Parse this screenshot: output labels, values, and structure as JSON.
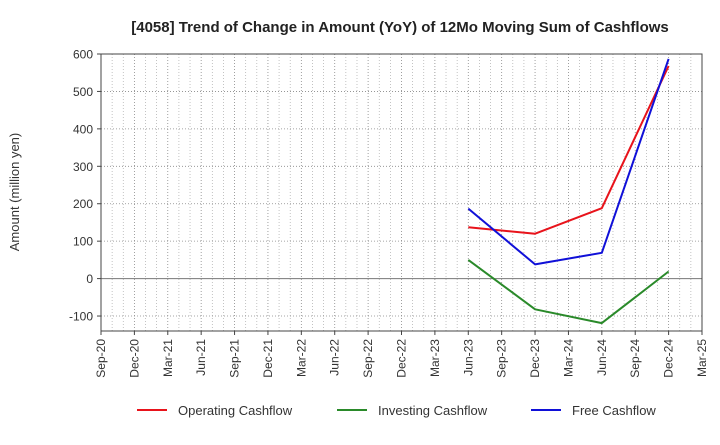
{
  "chart_data": {
    "type": "line",
    "title": "[4058]  Trend of Change in Amount (YoY) of 12Mo Moving Sum of Cashflows",
    "xlabel": "",
    "ylabel": "Amount (million yen)",
    "ylim": [
      -140,
      600
    ],
    "yticks": [
      -100,
      0,
      100,
      200,
      300,
      400,
      500,
      600
    ],
    "categories": [
      "Sep-20",
      "Dec-20",
      "Mar-21",
      "Jun-21",
      "Sep-21",
      "Dec-21",
      "Mar-22",
      "Jun-22",
      "Sep-22",
      "Dec-22",
      "Mar-23",
      "Jun-23",
      "Sep-23",
      "Dec-23",
      "Mar-24",
      "Jun-24",
      "Sep-24",
      "Dec-24",
      "Mar-25"
    ],
    "grid": true,
    "legend_position": "bottom",
    "series": [
      {
        "name": "Operating Cashflow",
        "color": "#e8131b",
        "values": [
          null,
          null,
          null,
          null,
          null,
          null,
          null,
          null,
          null,
          null,
          null,
          137,
          null,
          120,
          null,
          188,
          null,
          568,
          null
        ]
      },
      {
        "name": "Investing Cashflow",
        "color": "#2a8a2a",
        "values": [
          null,
          null,
          null,
          null,
          null,
          null,
          null,
          null,
          null,
          null,
          null,
          50,
          null,
          -82,
          null,
          -119,
          null,
          19,
          null
        ]
      },
      {
        "name": "Free Cashflow",
        "color": "#1010d8",
        "values": [
          null,
          null,
          null,
          null,
          null,
          null,
          null,
          null,
          null,
          null,
          null,
          187,
          null,
          38,
          null,
          69,
          null,
          587,
          null
        ]
      }
    ]
  }
}
